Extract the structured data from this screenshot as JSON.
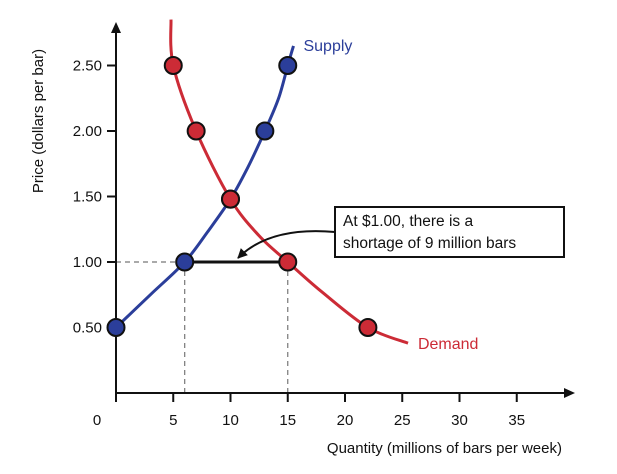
{
  "chart_data": {
    "type": "line",
    "xlabel": "Quantity (millions of bars per week)",
    "ylabel": "Price (dollars per bar)",
    "xlim": [
      0,
      37
    ],
    "ylim": [
      0,
      2.9
    ],
    "x_ticks": [
      0,
      5,
      10,
      15,
      20,
      25,
      30,
      35
    ],
    "y_ticks": [
      0.5,
      1.0,
      1.5,
      2.0,
      2.5
    ],
    "x_tick_labels": [
      "0",
      "5",
      "10",
      "15",
      "20",
      "25",
      "30",
      "35"
    ],
    "y_tick_labels": [
      "0.50",
      "1.00",
      "1.50",
      "2.00",
      "2.50"
    ],
    "series": [
      {
        "name": "Supply",
        "color": "#2b3e9a",
        "curve": [
          [
            0,
            0.5
          ],
          [
            3,
            0.75
          ],
          [
            6,
            1.0
          ],
          [
            8,
            1.23
          ],
          [
            10,
            1.48
          ],
          [
            11.5,
            1.72
          ],
          [
            13,
            2.0
          ],
          [
            14.2,
            2.25
          ],
          [
            15,
            2.5
          ],
          [
            15.5,
            2.65
          ]
        ],
        "points": [
          [
            0,
            0.5
          ],
          [
            6,
            1.0
          ],
          [
            10,
            1.48
          ],
          [
            13,
            2.0
          ],
          [
            15,
            2.5
          ]
        ]
      },
      {
        "name": "Demand",
        "color": "#cc2b36",
        "curve": [
          [
            4.8,
            2.85
          ],
          [
            5,
            2.5
          ],
          [
            7,
            2.0
          ],
          [
            10,
            1.48
          ],
          [
            12.5,
            1.2
          ],
          [
            15,
            1.0
          ],
          [
            18,
            0.77
          ],
          [
            22,
            0.5
          ],
          [
            25.5,
            0.38
          ]
        ],
        "points": [
          [
            5,
            2.5
          ],
          [
            7,
            2.0
          ],
          [
            10,
            1.48
          ],
          [
            15,
            1.0
          ],
          [
            22,
            0.5
          ]
        ]
      }
    ],
    "shortage": {
      "price": 1.0,
      "from_qty": 6,
      "to_qty": 15
    },
    "annotation": {
      "lines": [
        "At $1.00, there is a",
        "shortage of 9 million bars"
      ]
    }
  }
}
